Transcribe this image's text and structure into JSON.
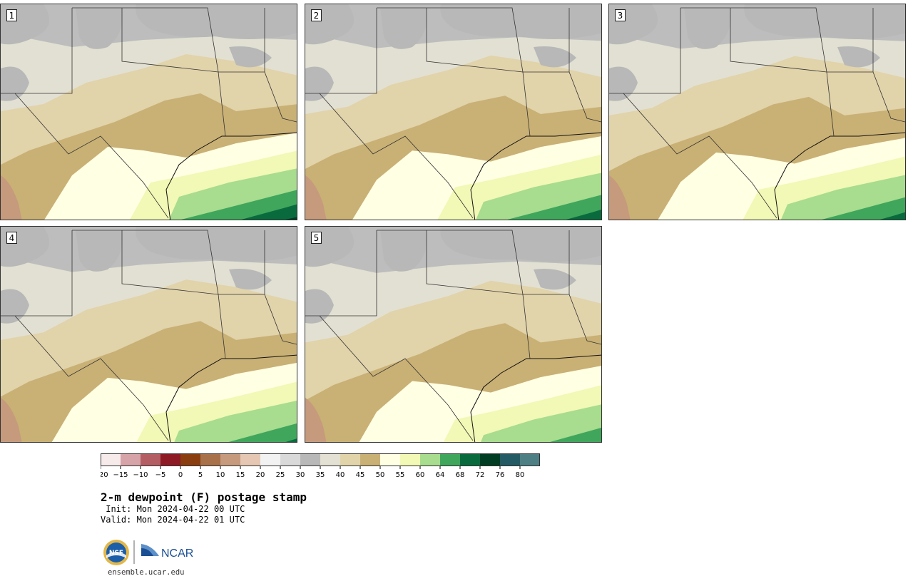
{
  "panels": [
    {
      "label": "1"
    },
    {
      "label": "2"
    },
    {
      "label": "3"
    },
    {
      "label": "4"
    },
    {
      "label": "5"
    }
  ],
  "colorbar": {
    "ticks": [
      "−20",
      "−15",
      "−10",
      "−5",
      "0",
      "5",
      "10",
      "15",
      "20",
      "25",
      "30",
      "35",
      "40",
      "45",
      "50",
      "55",
      "60",
      "64",
      "68",
      "72",
      "76",
      "80"
    ],
    "colors": [
      "#f6eaea",
      "#d6a3a8",
      "#b45d63",
      "#8d1a24",
      "#8a3e10",
      "#a8714a",
      "#c69a7d",
      "#e5c7b4",
      "#f2f2f2",
      "#d9d9d9",
      "#b8b8b8",
      "#e3e1d3",
      "#e2d4aa",
      "#c9b075",
      "#ffffe4",
      "#f2f8b5",
      "#a8dc8e",
      "#3fa65c",
      "#096b3d",
      "#003d22",
      "#245a63",
      "#4d7f84"
    ]
  },
  "title": "2-m dewpoint (F) postage stamp",
  "init": " Init: Mon 2024-04-22 00 UTC",
  "valid": "Valid: Mon 2024-04-22 01 UTC",
  "logos": {
    "nsf": "NSF",
    "ncar": "NCAR"
  },
  "url": "ensemble.ucar.edu"
}
